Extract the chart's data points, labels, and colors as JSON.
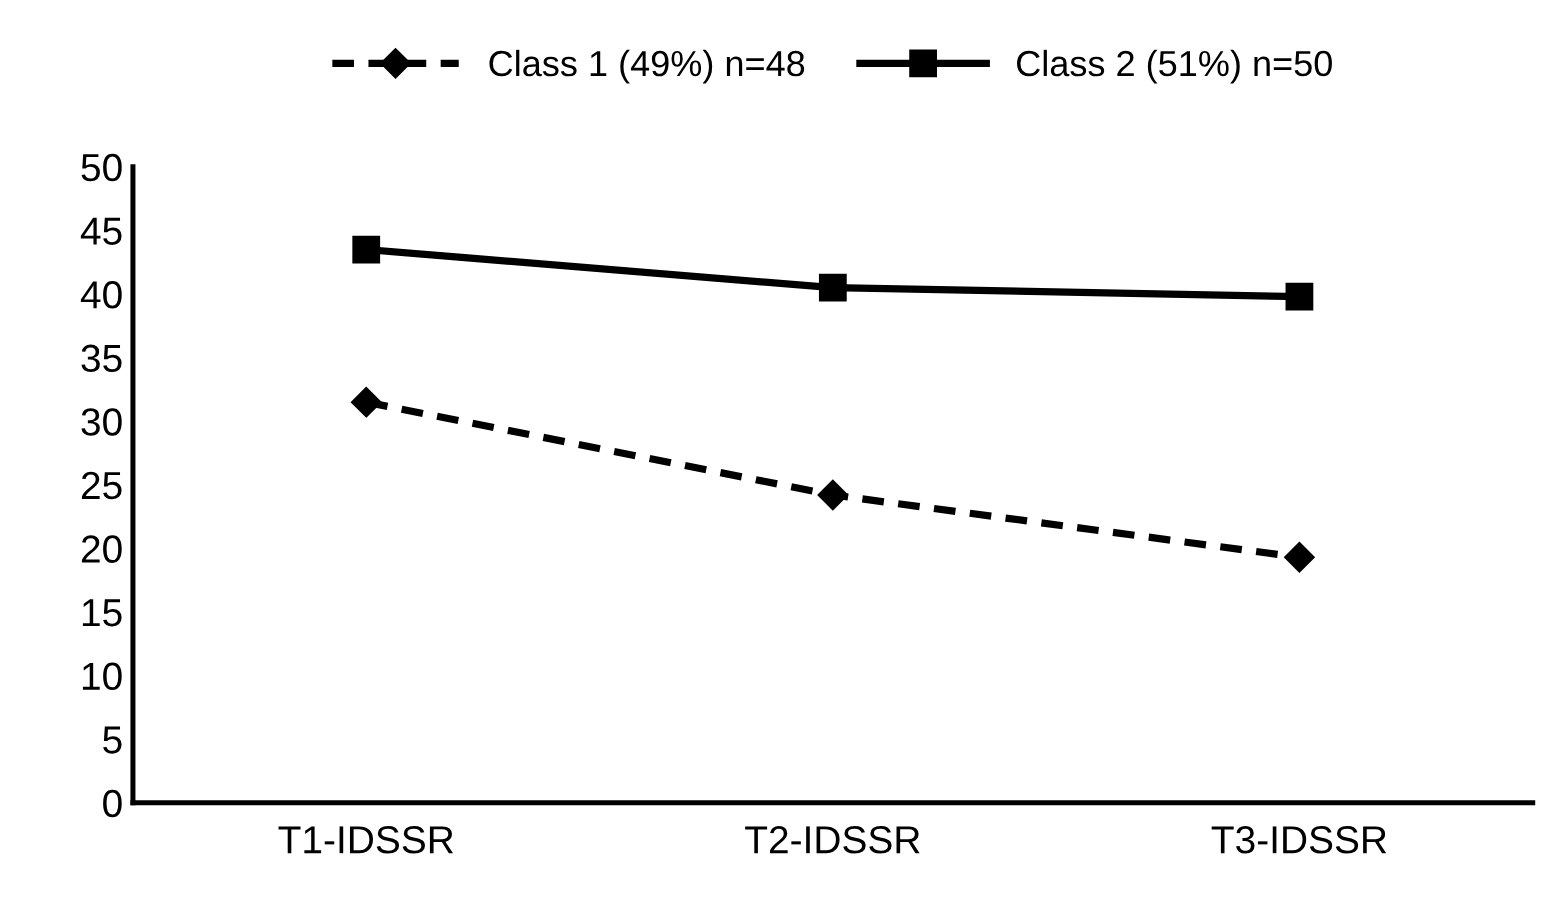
{
  "chart_data": {
    "type": "line",
    "categories": [
      "T1-IDSSR",
      "T2-IDSSR",
      "T3-IDSSR"
    ],
    "series": [
      {
        "name": "Class 1 (49%) n=48",
        "color": "#000000",
        "values": [
          31.5,
          24.2,
          19.3
        ],
        "marker": "diamond",
        "line_style": "dashed"
      },
      {
        "name": "Class 2 (51%) n=50",
        "color": "#000000",
        "values": [
          43.5,
          40.5,
          39.8
        ],
        "marker": "square",
        "line_style": "solid"
      }
    ],
    "ylim": [
      0,
      50
    ],
    "yticks": [
      0,
      5,
      10,
      15,
      20,
      25,
      30,
      35,
      40,
      45,
      50
    ],
    "grid": false,
    "legend": "top"
  }
}
